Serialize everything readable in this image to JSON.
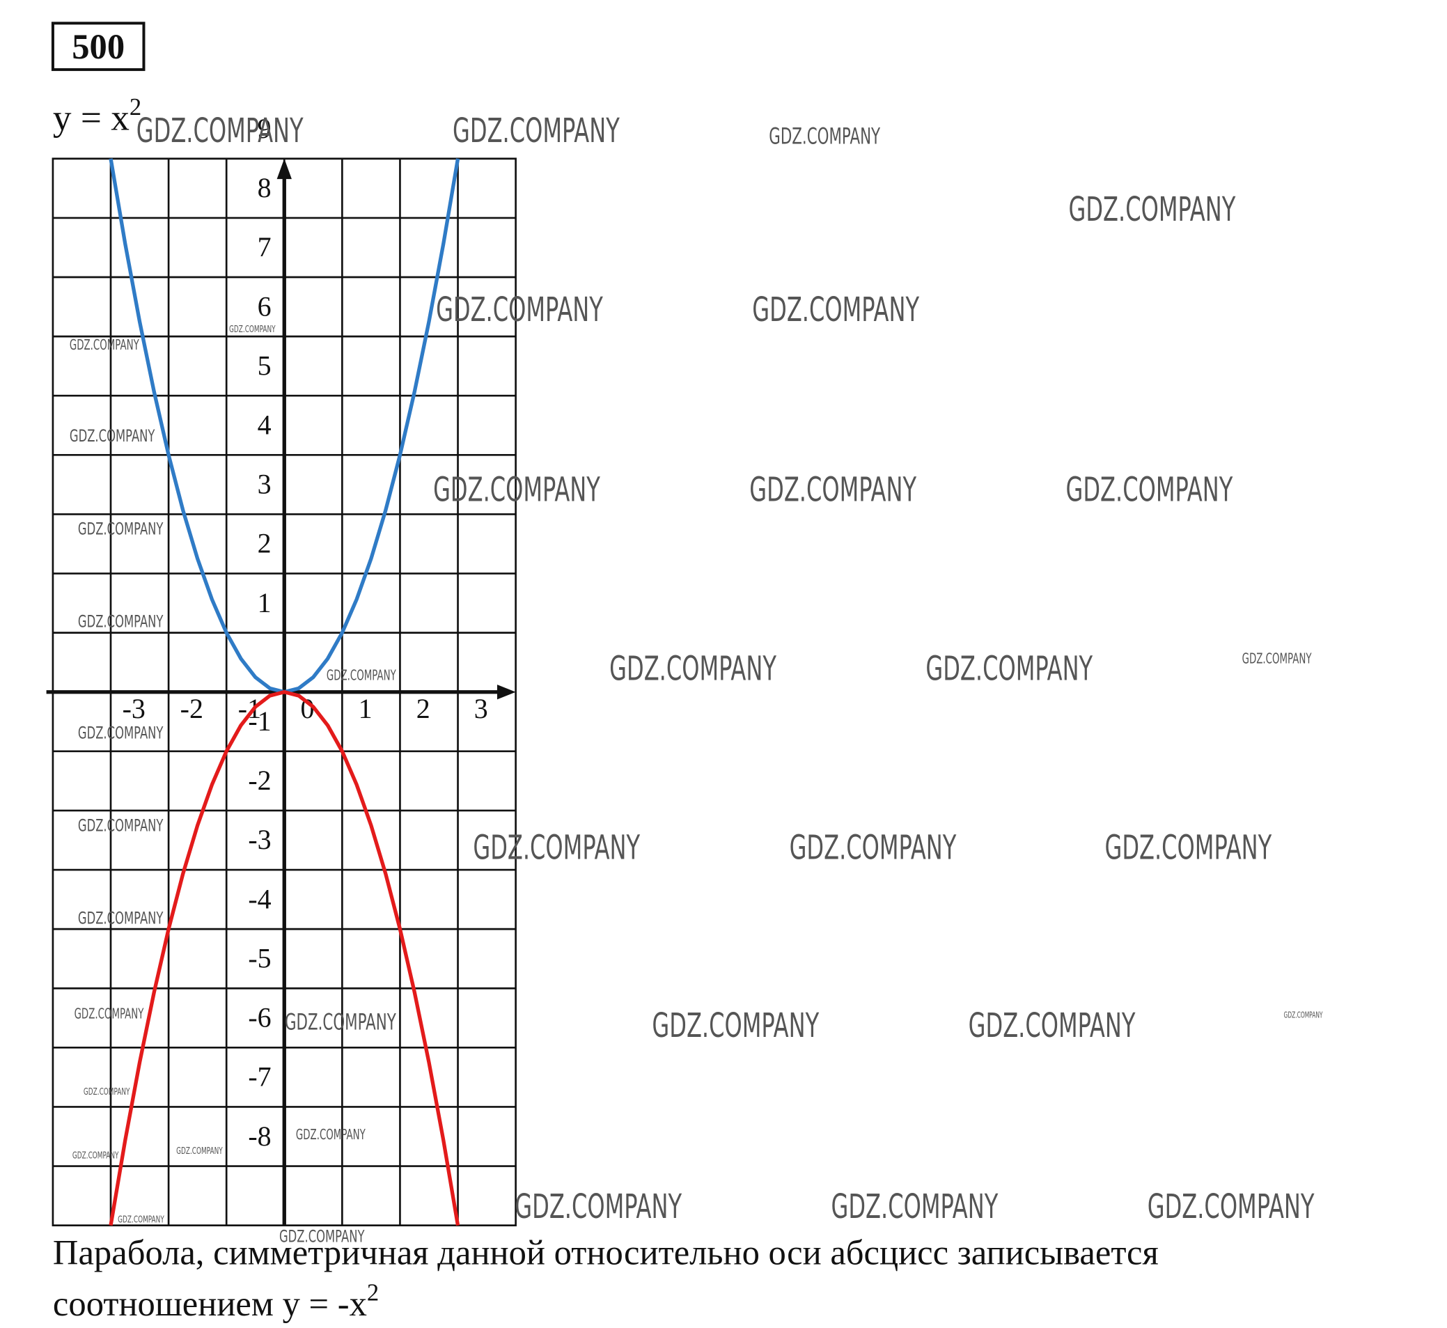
{
  "header": {
    "number": "500",
    "formula": "y = x",
    "formula_exp": "2"
  },
  "chart_data": {
    "type": "line",
    "x": [
      -3,
      -2.75,
      -2.5,
      -2.25,
      -2,
      -1.75,
      -1.5,
      -1.25,
      -1,
      -0.75,
      -0.5,
      -0.25,
      0,
      0.25,
      0.5,
      0.75,
      1,
      1.25,
      1.5,
      1.75,
      2,
      2.25,
      2.5,
      2.75,
      3
    ],
    "series": [
      {
        "name": "y = x²",
        "color": "#2f7bc6",
        "values": [
          9,
          7.5625,
          6.25,
          5.0625,
          4,
          3.0625,
          2.25,
          1.5625,
          1,
          0.5625,
          0.25,
          0.0625,
          0,
          0.0625,
          0.25,
          0.5625,
          1,
          1.5625,
          2.25,
          3.0625,
          4,
          5.0625,
          6.25,
          7.5625,
          9
        ]
      },
      {
        "name": "y = -x²",
        "color": "#e31b1b",
        "values": [
          -9,
          -7.5625,
          -6.25,
          -5.0625,
          -4,
          -3.0625,
          -2.25,
          -1.5625,
          -1,
          -0.5625,
          -0.25,
          -0.0625,
          0,
          -0.0625,
          -0.25,
          -0.5625,
          -1,
          -1.5625,
          -2.25,
          -3.0625,
          -4,
          -5.0625,
          -6.25,
          -7.5625,
          -9
        ]
      }
    ],
    "xlim": [
      -4,
      4
    ],
    "ylim": [
      -9,
      9
    ],
    "xticks": [
      -3,
      -2,
      -1,
      0,
      1,
      2,
      3
    ],
    "yticks": [
      -8,
      -7,
      -6,
      -5,
      -4,
      -3,
      -2,
      -1,
      1,
      2,
      3,
      4,
      5,
      6,
      7,
      8,
      9
    ],
    "grid": true
  },
  "caption": {
    "line1": "Парабола, симметричная данной относительно оси абсцисс записывается",
    "line2": "соотношением y = -x",
    "line2_exp": "2"
  },
  "watermark": "GDZ.COMPANY"
}
